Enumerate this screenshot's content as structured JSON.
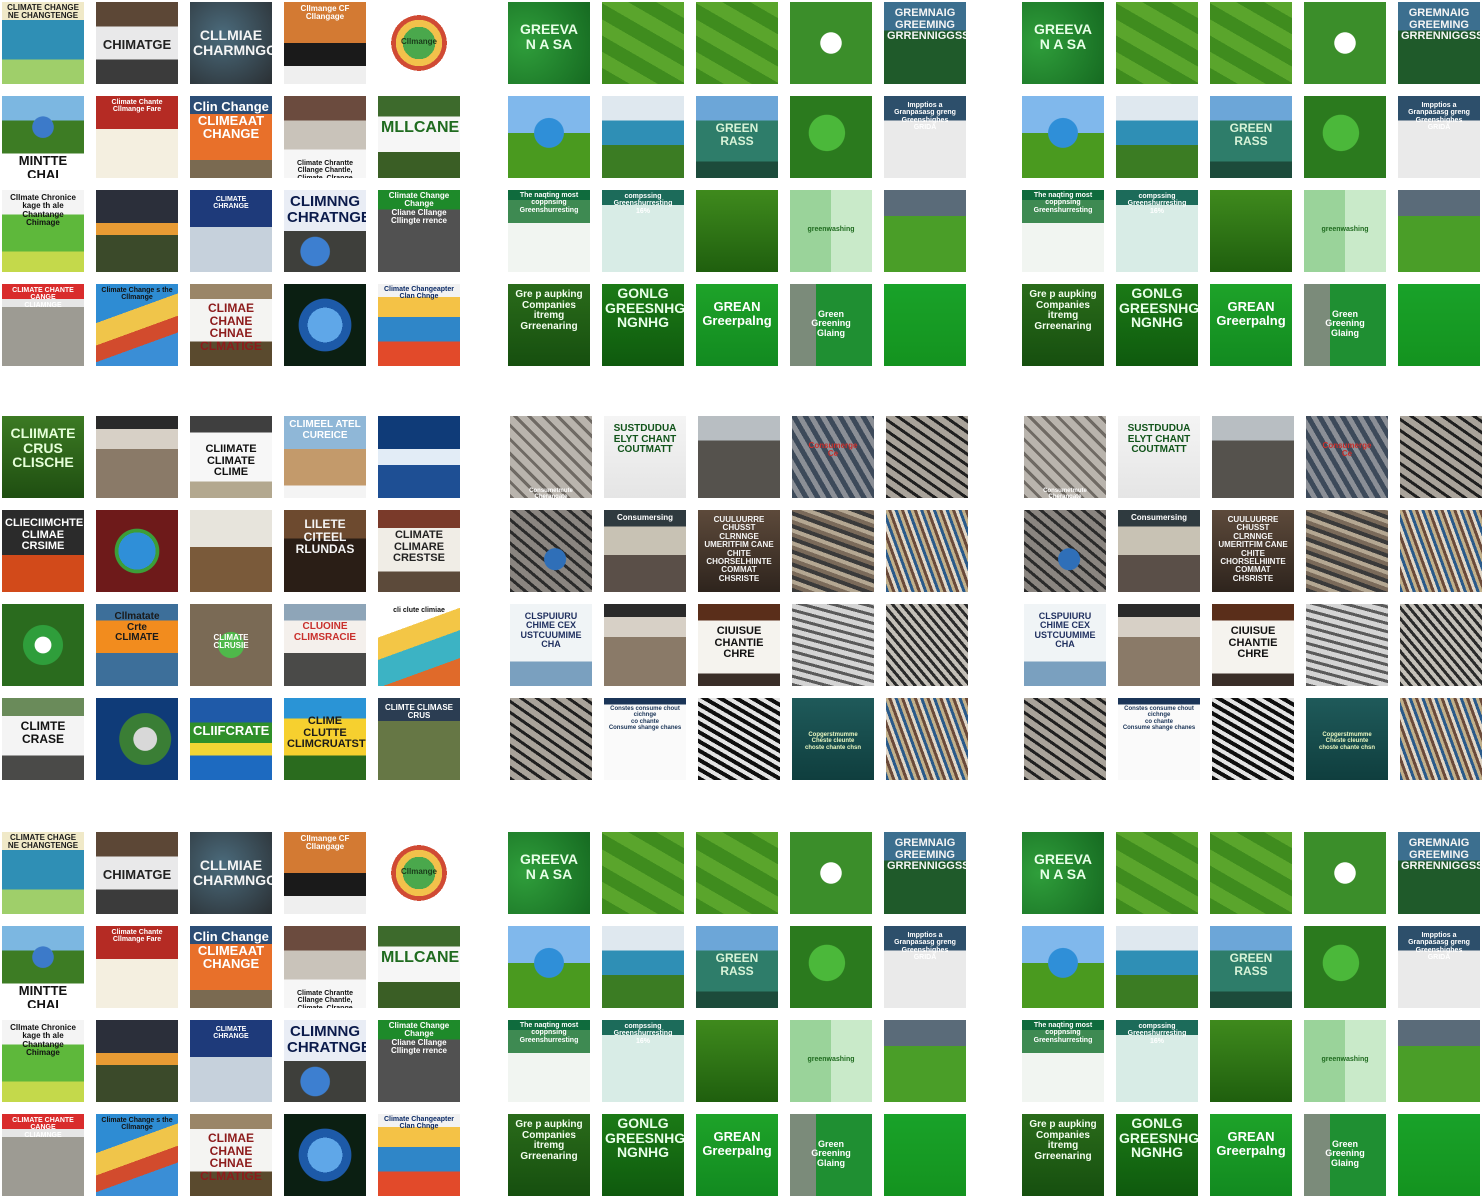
{
  "palette": {
    "climate_sky": "#3d6f9a",
    "climate_red": "#c9302c",
    "climate_orange": "#f28c1e",
    "climate_earth": "#8b5a2b",
    "climate_crack": "#6f6a64",
    "green_dark": "#2f6b15",
    "green_mid": "#4e9a1f",
    "green_bright": "#19a229",
    "green_pale": "#9ad39a",
    "gray_dark": "#3a3a3a",
    "paper": "#f4f4f0"
  },
  "grids": [
    {
      "id": "climate-change-1",
      "tiles": [
        {
          "style": "poster",
          "text": "CLIMATE CHANGE NE CHANGTENGE"
        },
        {
          "style": "sign",
          "text": "CHIMATGE"
        },
        {
          "style": "earth-text",
          "text": "CLLMIAE\nCHARMNGGE"
        },
        {
          "style": "bars",
          "text": "Cllmange CF Cllangage"
        },
        {
          "style": "wheel",
          "text": "Cllmange"
        },
        {
          "style": "globe-field",
          "text": "MINTTE CHAI"
        },
        {
          "style": "red-poster",
          "text": "Climate Chante Cllmange Fare"
        },
        {
          "style": "orange-sign",
          "text": "Clin Change\nCLIMEAAT\nCHANGE"
        },
        {
          "style": "storm",
          "text": "Climate Chrantte Cllange Chantle, Climate, Clrange"
        },
        {
          "style": "banner",
          "text": "MLLCANE"
        },
        {
          "style": "poster-green",
          "text": "Cllmate Chronice kage th ale Chantange Chimage"
        },
        {
          "style": "sunset",
          "text": ""
        },
        {
          "style": "industry",
          "text": "CLIMATE\nCHRANGE"
        },
        {
          "style": "globe-text",
          "text": "CLIMNNG\nCHRATNGE"
        },
        {
          "style": "green-header",
          "text": "Climate Change Change\nCliane Cllange Cllingte rrence"
        },
        {
          "style": "cracked-red",
          "text": "CLIMATE CHANTE CANGE\nCLIAMNGE"
        },
        {
          "style": "map",
          "text": "Climate Change s the Cllmange"
        },
        {
          "style": "protest-sign",
          "text": "CLIMAE\nCHANE\nCHNAE\nCLMATIGE"
        },
        {
          "style": "globe",
          "text": ""
        },
        {
          "style": "heatmap",
          "text": "Climate Changeapter Clan Chnge"
        }
      ]
    },
    {
      "id": "greenwashing-1",
      "tiles": [
        {
          "style": "green-head",
          "text": "GREEVA\nN A SA"
        },
        {
          "style": "field",
          "text": ""
        },
        {
          "style": "field",
          "text": ""
        },
        {
          "style": "hedge-logo",
          "text": ""
        },
        {
          "style": "green-banner",
          "text": "GREMNAIG\nGREEMING\nGRRENNIGGSSIV"
        },
        {
          "style": "globe-grass",
          "text": ""
        },
        {
          "style": "faucet",
          "text": ""
        },
        {
          "style": "building",
          "text": "GREEN\nRASS"
        },
        {
          "style": "leaf-plug",
          "text": ""
        },
        {
          "style": "doc",
          "text": "Impptios a Granpasasg greng Greenshighes\nGRIDA"
        },
        {
          "style": "doc-green",
          "text": "The naqting most\ncoppnsing Greenshurresting"
        },
        {
          "style": "doc-teal",
          "text": "compssing Greenshurresting\n16%"
        },
        {
          "style": "plane",
          "text": ""
        },
        {
          "style": "recycle",
          "text": "greenwashing"
        },
        {
          "style": "field-city",
          "text": ""
        },
        {
          "style": "green-text",
          "text": "Gre p aupking\nCompanies\nitremg\nGrreenaring"
        },
        {
          "style": "big-letters",
          "text": "GONLG\nGREESNHG\nNGNHG"
        },
        {
          "style": "green-sign",
          "text": "GREAN\nGreerpalng"
        },
        {
          "style": "street-sign",
          "text": "Green\nGreening\nGlaing"
        },
        {
          "style": "hand",
          "text": ""
        }
      ]
    },
    {
      "id": "greenwashing-2",
      "tiles": [
        {
          "style": "green-head",
          "text": "GREEVA\nN A SA"
        },
        {
          "style": "field",
          "text": ""
        },
        {
          "style": "field",
          "text": ""
        },
        {
          "style": "hedge-logo",
          "text": ""
        },
        {
          "style": "green-banner",
          "text": "GREMNAIG\nGREEMING\nGRRENNIGGSSIV"
        },
        {
          "style": "globe-grass",
          "text": ""
        },
        {
          "style": "faucet",
          "text": ""
        },
        {
          "style": "building",
          "text": "GREEN\nRASS"
        },
        {
          "style": "leaf-plug",
          "text": ""
        },
        {
          "style": "doc",
          "text": "Impptios a Granpasasg greng Greenshighes\nGRIDA"
        },
        {
          "style": "doc-green",
          "text": "The naqting most\ncoppnsing Greenshurresting"
        },
        {
          "style": "doc-teal",
          "text": "compssing Greenshurresting\n16%"
        },
        {
          "style": "plane",
          "text": ""
        },
        {
          "style": "recycle",
          "text": "greenwashing"
        },
        {
          "style": "field-city",
          "text": ""
        },
        {
          "style": "green-text",
          "text": "Gre p aupking\nCompanies\nitremg\nGrreenaring"
        },
        {
          "style": "big-letters",
          "text": "GONLG\nGREESNHG\nNGNHG"
        },
        {
          "style": "green-sign",
          "text": "GREAN\nGreerpalng"
        },
        {
          "style": "street-sign",
          "text": "Green\nGreening\nGlaing"
        },
        {
          "style": "hand",
          "text": ""
        }
      ]
    },
    {
      "id": "climate-crisis",
      "tiles": [
        {
          "style": "words-green",
          "text": "CLIIMATE CRUS\nCLISCHE"
        },
        {
          "style": "cracked-sky",
          "text": ""
        },
        {
          "style": "sign-clime",
          "text": "CLIIMATE\nCLIMATE CLIME"
        },
        {
          "style": "poster-desert",
          "text": "CLIMEEL ATEL\nCUREICE"
        },
        {
          "style": "ice",
          "text": ""
        },
        {
          "style": "fire-text",
          "text": "CLIECIIMCHTE\nCLIMAE\nCRSIME"
        },
        {
          "style": "globe-red",
          "text": ""
        },
        {
          "style": "windmill",
          "text": ""
        },
        {
          "style": "dark-letters",
          "text": "LILETE\nCITEEL\nRLUNDAS"
        },
        {
          "style": "protest-banner",
          "text": "CLIMATE\nCLIMARE\nCRESTSE"
        },
        {
          "style": "leaf-globe",
          "text": ""
        },
        {
          "style": "orange-arrow",
          "text": "Cllmatate\nCrte\nCLIMATE"
        },
        {
          "style": "cracked-badge",
          "text": "CLIMATE\nCLRUSIE"
        },
        {
          "style": "march",
          "text": "CLUOINE\nCLIMSRACIE"
        },
        {
          "style": "infographic",
          "text": "cli clute climiae"
        },
        {
          "style": "march-sign",
          "text": "CLIMTE\nCRASE"
        },
        {
          "style": "satellite",
          "text": ""
        },
        {
          "style": "sunburst",
          "text": "CLIIFCRATE"
        },
        {
          "style": "colorful",
          "text": "CLIME CLUTTE\nCLIMCRUATSTE"
        },
        {
          "style": "field-title",
          "text": "CLIMTE CLIMASE CRUS"
        }
      ]
    },
    {
      "id": "consumer-1",
      "tiles": [
        {
          "style": "cracked",
          "text": "Consumetmute Cherangate"
        },
        {
          "style": "word-collage",
          "text": "SUSTDUDUA\nELYT CHANT\nCOUTMATT"
        },
        {
          "style": "cracked-gray",
          "text": ""
        },
        {
          "style": "trash-sign",
          "text": "Consumerge\nCe"
        },
        {
          "style": "cracked-dark",
          "text": ""
        },
        {
          "style": "cracked-globe",
          "text": ""
        },
        {
          "style": "store",
          "text": "Consumersing"
        },
        {
          "style": "text-white",
          "text": "CUULUURRE CHUSST\nCLRNNGE\nUMERITFIM CANE CHITE\nCHORSELHIINTE\nCOMMAT CHSRISTE"
        },
        {
          "style": "trash",
          "text": ""
        },
        {
          "style": "trash-color",
          "text": ""
        },
        {
          "style": "map-text",
          "text": "CLSPUIURU\nCHIME CEX\nUSTCUUMIME CHA"
        },
        {
          "style": "cracked-sky",
          "text": ""
        },
        {
          "style": "protest-board",
          "text": "CIUISUE\nCHANTIE\nCHRE"
        },
        {
          "style": "tiles-gray",
          "text": ""
        },
        {
          "style": "trash-person",
          "text": ""
        },
        {
          "style": "cracked-dark",
          "text": ""
        },
        {
          "style": "doc-white",
          "text": "Constes consume chout cichnge\nco chante\nConsume shange chanes"
        },
        {
          "style": "trash-mono",
          "text": ""
        },
        {
          "style": "teal",
          "text": "Copgerstmumme\nCheste cleunte\nchoste chante chsn"
        },
        {
          "style": "trash-color",
          "text": ""
        }
      ]
    },
    {
      "id": "consumer-2",
      "tiles": [
        {
          "style": "cracked",
          "text": "Consumetmute Cherangate"
        },
        {
          "style": "word-collage",
          "text": "SUSTDUDUA\nELYT CHANT\nCOUTMATT"
        },
        {
          "style": "cracked-gray",
          "text": ""
        },
        {
          "style": "trash-sign",
          "text": "Consumerge\nCe"
        },
        {
          "style": "cracked-dark",
          "text": ""
        },
        {
          "style": "cracked-globe",
          "text": ""
        },
        {
          "style": "store",
          "text": "Consumersing"
        },
        {
          "style": "text-white",
          "text": "CUULUURRE CHUSST\nCLRNNGE\nUMERITFIM CANE CHITE\nCHORSELHIINTE\nCOMMAT CHSRISTE"
        },
        {
          "style": "trash",
          "text": ""
        },
        {
          "style": "trash-color",
          "text": ""
        },
        {
          "style": "map-text",
          "text": "CLSPUIURU\nCHIME CEX\nUSTCUUMIME CHA"
        },
        {
          "style": "cracked-sky",
          "text": ""
        },
        {
          "style": "protest-board",
          "text": "CIUISUE\nCHANTIE\nCHRE"
        },
        {
          "style": "tiles-gray",
          "text": ""
        },
        {
          "style": "trash-person",
          "text": ""
        },
        {
          "style": "cracked-dark",
          "text": ""
        },
        {
          "style": "doc-white",
          "text": "Constes consume chout cichnge\nco chante\nConsume shange chanes"
        },
        {
          "style": "trash-mono",
          "text": ""
        },
        {
          "style": "teal",
          "text": "Copgerstmumme\nCheste cleunte\nchoste chante chsn"
        },
        {
          "style": "trash-color",
          "text": ""
        }
      ]
    },
    {
      "id": "climate-change-2",
      "tiles": [
        {
          "style": "poster",
          "text": "CLIMATE CHAGE NE CHANGTENGE"
        },
        {
          "style": "sign",
          "text": "CHIMATGE"
        },
        {
          "style": "earth-text",
          "text": "CLLMIAE\nCHARMNGGE"
        },
        {
          "style": "bars",
          "text": "Cllmange CF Cllangage"
        },
        {
          "style": "wheel",
          "text": "Cllmange"
        },
        {
          "style": "globe-field",
          "text": "MINTTE CHAI"
        },
        {
          "style": "red-poster",
          "text": "Climate Chante Cllmange Fare"
        },
        {
          "style": "orange-sign",
          "text": "Clin Change\nCLIMEAAT\nCHANGE"
        },
        {
          "style": "storm",
          "text": "Climate Chrantte Cllange Chantle, Climate, Clrange"
        },
        {
          "style": "banner",
          "text": "MLLCANE"
        },
        {
          "style": "poster-green",
          "text": "Cllmate Chronice kage th ale Chantange Chimage"
        },
        {
          "style": "sunset",
          "text": ""
        },
        {
          "style": "industry",
          "text": "CLIMATE\nCHRANGE"
        },
        {
          "style": "globe-text",
          "text": "CLIMNNG\nCHRATNGE"
        },
        {
          "style": "green-header",
          "text": "Climate Change Change\nCliane Cllange Cllingte rrence"
        },
        {
          "style": "cracked-red",
          "text": "CLIMATE CHANTE CANGE\nCLIAMNGE"
        },
        {
          "style": "map",
          "text": "Climate Change s the Cllmange"
        },
        {
          "style": "protest-sign",
          "text": "CLIMAE\nCHANE\nCHNAE\nCLMATIGE"
        },
        {
          "style": "globe",
          "text": ""
        },
        {
          "style": "heatmap",
          "text": "Climate Changeapter Clan Chnge"
        }
      ]
    },
    {
      "id": "greenwashing-3",
      "tiles": [
        {
          "style": "green-head",
          "text": "GREEVA\nN A SA"
        },
        {
          "style": "field",
          "text": ""
        },
        {
          "style": "field",
          "text": ""
        },
        {
          "style": "hedge-logo",
          "text": ""
        },
        {
          "style": "green-banner",
          "text": "GREMNAIG\nGREEMING\nGRRENNIGGSSIV"
        },
        {
          "style": "globe-grass",
          "text": ""
        },
        {
          "style": "faucet",
          "text": ""
        },
        {
          "style": "building",
          "text": "GREEN\nRASS"
        },
        {
          "style": "leaf-plug",
          "text": ""
        },
        {
          "style": "doc",
          "text": "Impptios a Granpasasg greng Greenshighes\nGRIDA"
        },
        {
          "style": "doc-green",
          "text": "The naqting most\ncoppnsing Greenshurresting"
        },
        {
          "style": "doc-teal",
          "text": "compssing Greenshurresting\n16%"
        },
        {
          "style": "plane",
          "text": ""
        },
        {
          "style": "recycle",
          "text": "greenwashing"
        },
        {
          "style": "field-city",
          "text": ""
        },
        {
          "style": "green-text",
          "text": "Gre p aupking\nCompanies\nitremg\nGrreenaring"
        },
        {
          "style": "big-letters",
          "text": "GONLG\nGREESNHG\nNGNHG"
        },
        {
          "style": "green-sign",
          "text": "GREAN\nGreerpalng"
        },
        {
          "style": "street-sign",
          "text": "Green\nGreening\nGlaing"
        },
        {
          "style": "hand",
          "text": ""
        }
      ]
    },
    {
      "id": "greenwashing-4",
      "tiles": [
        {
          "style": "green-head",
          "text": "GREEVA\nN A SA"
        },
        {
          "style": "field",
          "text": ""
        },
        {
          "style": "field",
          "text": ""
        },
        {
          "style": "hedge-logo",
          "text": ""
        },
        {
          "style": "green-banner",
          "text": "GREMNAIG\nGREEMING\nGRRENNIGGSSIV"
        },
        {
          "style": "globe-grass",
          "text": ""
        },
        {
          "style": "faucet",
          "text": ""
        },
        {
          "style": "building",
          "text": "GREEN\nRASS"
        },
        {
          "style": "leaf-plug",
          "text": ""
        },
        {
          "style": "doc",
          "text": "Impptios a Granpasasg greng Greenshighes\nGRIDA"
        },
        {
          "style": "doc-green",
          "text": "The naqting most\ncoppnsing Greenshurresting"
        },
        {
          "style": "doc-teal",
          "text": "compssing Greenshurresting\n16%"
        },
        {
          "style": "plane",
          "text": ""
        },
        {
          "style": "recycle",
          "text": "greenwashing"
        },
        {
          "style": "field-city",
          "text": ""
        },
        {
          "style": "green-text",
          "text": "Gre p aupking\nCompanies\nitremg\nGrreenaring"
        },
        {
          "style": "big-letters",
          "text": "GONLG\nGREESNHG\nNGNHG"
        },
        {
          "style": "green-sign",
          "text": "GREAN\nGreerpalng"
        },
        {
          "style": "street-sign",
          "text": "Green\nGreening\nGlaing"
        },
        {
          "style": "hand",
          "text": ""
        }
      ]
    }
  ]
}
